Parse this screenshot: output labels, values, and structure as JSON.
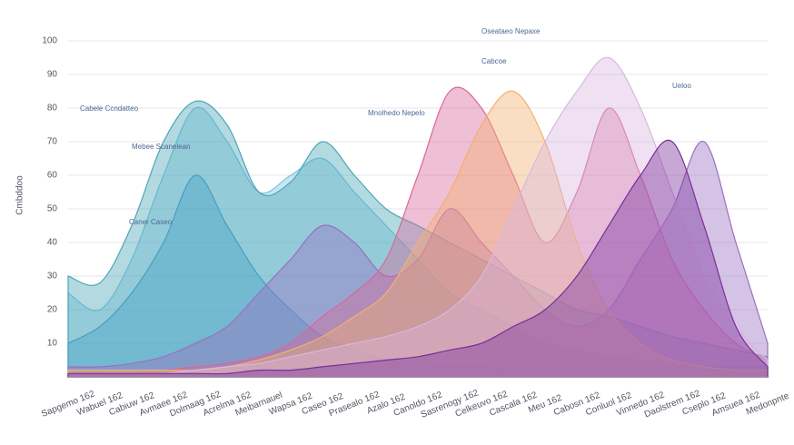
{
  "chart_data": {
    "type": "area",
    "y_label": "Cmbddoo",
    "categories": [
      "Sapgemo 162",
      "Wabuel 162",
      "Cabiuw 162",
      "Avmaee 162",
      "Dolmaag 162",
      "Acrelma 162",
      "Meibarnauel",
      "Wapsa 162",
      "Caseo 162",
      "Prasealo 162",
      "Azalo 162",
      "Canoldo 162",
      "Sasrenogy 162",
      "Celkeuvo 162",
      "Cascala 162",
      "Meu 162",
      "Cabosn 162",
      "Conluol 162",
      "Vinnedo 162",
      "Daolstrem 162",
      "Cseplo 162",
      "Amsuea 162",
      "Medonpnte"
    ],
    "ylim": [
      0,
      100
    ],
    "yticks": [
      10,
      20,
      30,
      40,
      50,
      60,
      70,
      80,
      90,
      100
    ],
    "grid": true,
    "annotations": [
      "Cabele Ccndatteo",
      "Mebee Scanelean",
      "Caner Caseo",
      "Mnolhedo Nepelo",
      "Oseataeo Nepaxe",
      "Cabcoe",
      "Ueloo"
    ],
    "series": [
      {
        "color": "#1f7fb8",
        "values": [
          10,
          15,
          25,
          40,
          60,
          45,
          30,
          20,
          12,
          8,
          5,
          4,
          3,
          3,
          2,
          2,
          2,
          2,
          2,
          2,
          2,
          2,
          2
        ]
      },
      {
        "color": "#7cc4e0",
        "values": [
          25,
          20,
          35,
          60,
          80,
          70,
          55,
          60,
          65,
          55,
          45,
          35,
          25,
          20,
          15,
          10,
          8,
          6,
          5,
          4,
          3,
          3,
          3
        ]
      },
      {
        "color": "#4aa7b8",
        "values": [
          30,
          28,
          45,
          70,
          82,
          75,
          55,
          58,
          70,
          60,
          50,
          45,
          40,
          35,
          30,
          25,
          20,
          18,
          15,
          12,
          10,
          8,
          6
        ]
      },
      {
        "color": "#9b6fc0",
        "values": [
          3,
          3,
          4,
          6,
          10,
          15,
          25,
          35,
          45,
          40,
          30,
          35,
          50,
          40,
          30,
          20,
          15,
          20,
          35,
          50,
          70,
          40,
          10
        ]
      },
      {
        "color": "#d9679a",
        "values": [
          2,
          2,
          2,
          2,
          3,
          4,
          6,
          10,
          18,
          25,
          35,
          60,
          85,
          80,
          60,
          40,
          55,
          80,
          60,
          35,
          20,
          10,
          5
        ]
      },
      {
        "color": "#f2b070",
        "values": [
          2,
          2,
          2,
          2,
          2,
          3,
          5,
          8,
          12,
          18,
          25,
          40,
          55,
          75,
          85,
          70,
          40,
          20,
          10,
          5,
          3,
          2,
          2
        ]
      },
      {
        "color": "#d8b8e0",
        "values": [
          1,
          1,
          1,
          1,
          2,
          3,
          4,
          6,
          8,
          10,
          12,
          15,
          20,
          30,
          50,
          70,
          85,
          95,
          80,
          55,
          30,
          15,
          5
        ]
      },
      {
        "color": "#7a2f9a",
        "values": [
          1,
          1,
          1,
          1,
          1,
          1,
          2,
          2,
          3,
          4,
          5,
          6,
          8,
          10,
          15,
          20,
          30,
          45,
          60,
          70,
          45,
          15,
          3
        ]
      }
    ]
  }
}
